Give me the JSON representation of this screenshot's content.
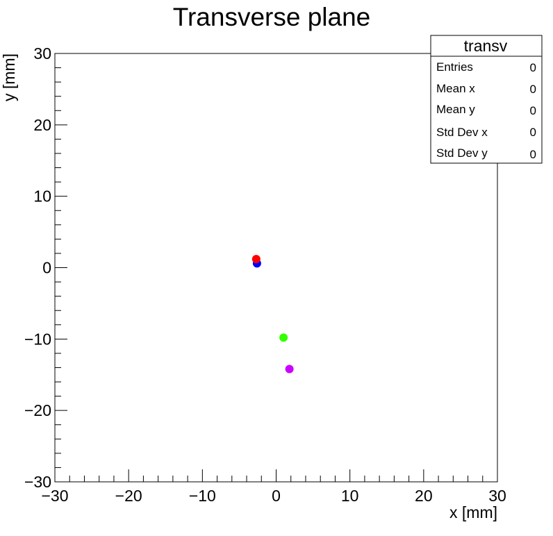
{
  "chart_data": {
    "type": "scatter",
    "title": "Transverse plane",
    "xlabel": "x [mm]",
    "ylabel": "y [mm]",
    "xlim": [
      -30,
      30
    ],
    "ylim": [
      -30,
      30
    ],
    "x_ticks": [
      -30,
      -20,
      -10,
      0,
      10,
      20,
      30
    ],
    "y_ticks": [
      -30,
      -20,
      -10,
      0,
      10,
      20,
      30
    ],
    "x_tick_labels": [
      "−30",
      "−20",
      "−10",
      "0",
      "10",
      "20",
      "30"
    ],
    "y_tick_labels": [
      "−30",
      "−20",
      "−10",
      "0",
      "10",
      "20",
      "30"
    ],
    "grid": false,
    "points": [
      {
        "x": -2.6,
        "y": 0.6,
        "color": "#0000ff"
      },
      {
        "x": -2.7,
        "y": 1.2,
        "color": "#ff0000"
      },
      {
        "x": 1.0,
        "y": -9.8,
        "color": "#33ff00"
      },
      {
        "x": 1.8,
        "y": -14.2,
        "color": "#cc00ff"
      }
    ]
  },
  "stats_box": {
    "title": "transv",
    "rows": [
      {
        "label": "Entries",
        "value": "0"
      },
      {
        "label": "Mean x",
        "value": "0"
      },
      {
        "label": "Mean y",
        "value": "0"
      },
      {
        "label": "Std Dev x",
        "value": "0"
      },
      {
        "label": "Std Dev y",
        "value": "0"
      }
    ]
  }
}
